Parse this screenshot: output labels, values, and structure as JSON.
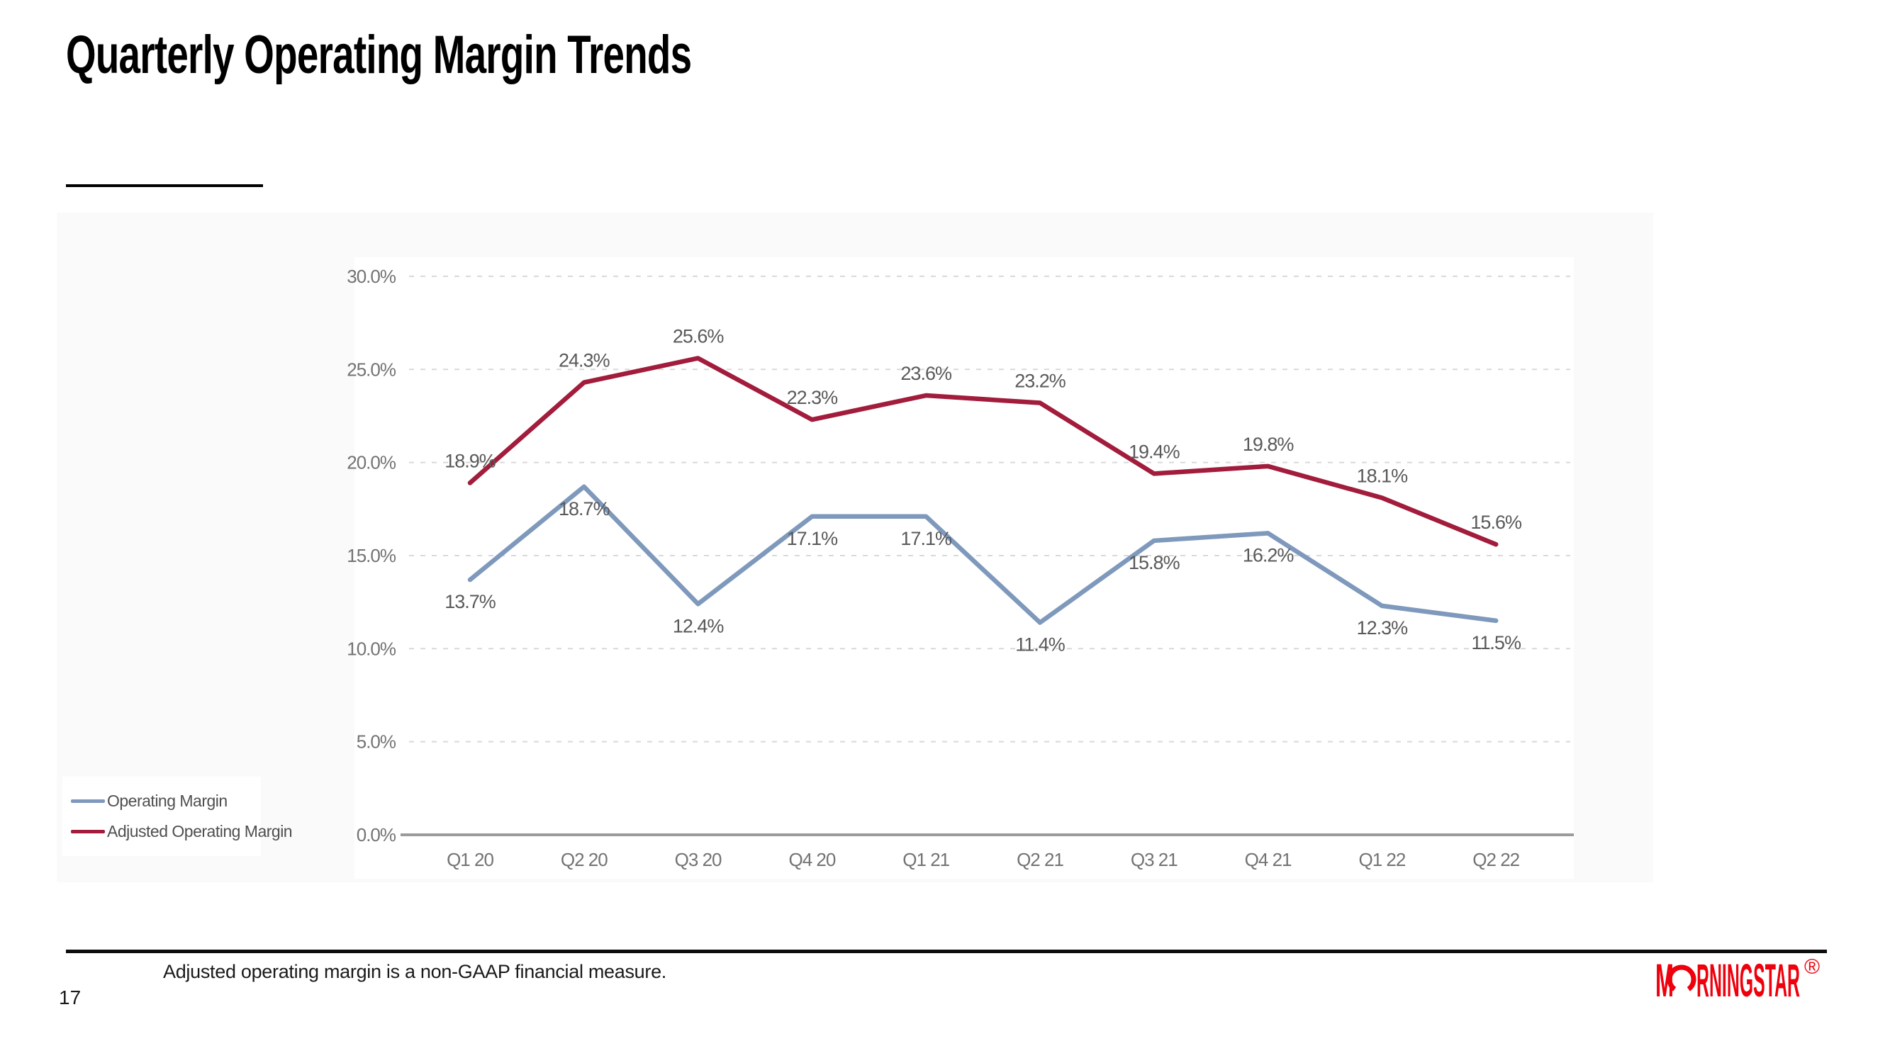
{
  "slide": {
    "title": "Quarterly Operating Margin Trends",
    "page_number": "17",
    "footnote": "Adjusted operating margin is a non-GAAP financial measure."
  },
  "logo": {
    "name": "Morningstar",
    "pre": "M",
    "post": "RNINGSTAR",
    "registered": "®",
    "color": "#ee000c"
  },
  "legend": {
    "items": [
      {
        "label": "Operating Margin",
        "color": "#7f99bc"
      },
      {
        "label": "Adjusted Operating Margin",
        "color": "#a21c3c"
      }
    ]
  },
  "chart_data": {
    "type": "line",
    "title": "",
    "categories": [
      "Q1 20",
      "Q2 20",
      "Q3 20",
      "Q4 20",
      "Q1 21",
      "Q2 21",
      "Q3 21",
      "Q4 21",
      "Q1 22",
      "Q2 22"
    ],
    "series": [
      {
        "name": "Operating Margin",
        "color": "#7f99bc",
        "data_labels_position": "below",
        "values": [
          13.7,
          18.7,
          12.4,
          17.1,
          17.1,
          11.4,
          15.8,
          16.2,
          12.3,
          11.5
        ]
      },
      {
        "name": "Adjusted Operating Margin",
        "color": "#a21c3c",
        "data_labels_position": "above",
        "values": [
          18.9,
          24.3,
          25.6,
          22.3,
          23.6,
          23.2,
          19.4,
          19.8,
          18.1,
          15.6
        ]
      }
    ],
    "xlabel": "",
    "ylabel": "",
    "ylim": [
      0,
      30
    ],
    "ytick_values": [
      0,
      5,
      10,
      15,
      20,
      25,
      30
    ],
    "ytick_labels": [
      "0.0%",
      "5.0%",
      "10.0%",
      "15.0%",
      "20.0%",
      "25.0%",
      "30.0%"
    ],
    "grid": "horizontal dashed",
    "legend_position": "bottom-left outside plot",
    "value_format": "one decimal percent"
  },
  "colors": {
    "tick_label": "#737373",
    "data_label": "#595959",
    "gridline": "#d9d9d9",
    "axis_line": "#9b9b9b",
    "legend_text": "#4f4f4f",
    "chart_backdrop": "#fafafa"
  }
}
